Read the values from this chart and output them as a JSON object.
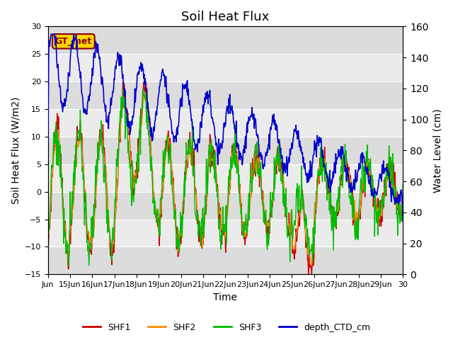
{
  "title": "Soil Heat Flux",
  "xlabel": "Time",
  "ylabel_left": "Soil Heat Flux (W/m2)",
  "ylabel_right": "Water Level (cm)",
  "ylim_left": [
    -15,
    30
  ],
  "ylim_right": [
    0,
    160
  ],
  "yticks_left": [
    -15,
    -10,
    -5,
    0,
    5,
    10,
    15,
    20,
    25,
    30
  ],
  "yticks_right": [
    0,
    20,
    40,
    60,
    80,
    100,
    120,
    140,
    160
  ],
  "xtick_labels": [
    "Jun",
    "15Jun",
    "16Jun",
    "17Jun",
    "18Jun",
    "19Jun",
    "20Jun",
    "21Jun",
    "22Jun",
    "23Jun",
    "24Jun",
    "25Jun",
    "26Jun",
    "27Jun",
    "28Jun",
    "29Jun",
    "30"
  ],
  "annotation_text": "GT_met",
  "annotation_color": "#8B0000",
  "annotation_bg": "#FFD700",
  "colors": {
    "SHF1": "#CC0000",
    "SHF2": "#FF8C00",
    "SHF3": "#00BB00",
    "depth_CTD_cm": "#0000CC"
  },
  "legend_labels": [
    "SHF1",
    "SHF2",
    "SHF3",
    "depth_CTD_cm"
  ],
  "title_fontsize": 13,
  "axis_label_fontsize": 10,
  "tick_fontsize": 8
}
